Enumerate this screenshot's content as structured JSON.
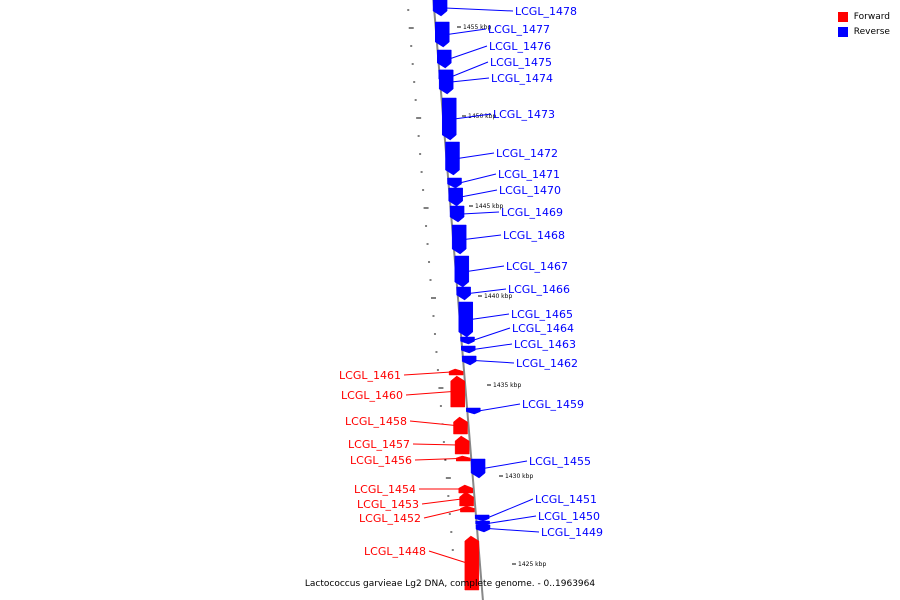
{
  "colors": {
    "forward": "#ff0000",
    "reverse": "#0000ff",
    "backbone": "#888888"
  },
  "legend": [
    {
      "label": "Forward",
      "color": "#ff0000"
    },
    {
      "label": "Reverse",
      "color": "#0000ff"
    }
  ],
  "footer": {
    "text": "Lactococcus garvieae Lg2 DNA, complete genome. - 0..1963964"
  },
  "ticks": [
    "1455 kbp",
    "1450 kbp",
    "1445 kbp",
    "1440 kbp",
    "1435 kbp",
    "1430 kbp",
    "1425 kbp"
  ],
  "genes": [
    {
      "name": "LCGL_1478",
      "strand": "reverse"
    },
    {
      "name": "LCGL_1477",
      "strand": "reverse"
    },
    {
      "name": "LCGL_1476",
      "strand": "reverse"
    },
    {
      "name": "LCGL_1475",
      "strand": "reverse"
    },
    {
      "name": "LCGL_1474",
      "strand": "reverse"
    },
    {
      "name": "LCGL_1473",
      "strand": "reverse"
    },
    {
      "name": "LCGL_1472",
      "strand": "reverse"
    },
    {
      "name": "LCGL_1471",
      "strand": "reverse"
    },
    {
      "name": "LCGL_1470",
      "strand": "reverse"
    },
    {
      "name": "LCGL_1469",
      "strand": "reverse"
    },
    {
      "name": "LCGL_1468",
      "strand": "reverse"
    },
    {
      "name": "LCGL_1467",
      "strand": "reverse"
    },
    {
      "name": "LCGL_1466",
      "strand": "reverse"
    },
    {
      "name": "LCGL_1465",
      "strand": "reverse"
    },
    {
      "name": "LCGL_1464",
      "strand": "reverse"
    },
    {
      "name": "LCGL_1463",
      "strand": "reverse"
    },
    {
      "name": "LCGL_1462",
      "strand": "reverse"
    },
    {
      "name": "LCGL_1461",
      "strand": "forward"
    },
    {
      "name": "LCGL_1460",
      "strand": "forward"
    },
    {
      "name": "LCGL_1459",
      "strand": "reverse"
    },
    {
      "name": "LCGL_1458",
      "strand": "forward"
    },
    {
      "name": "LCGL_1457",
      "strand": "forward"
    },
    {
      "name": "LCGL_1456",
      "strand": "forward"
    },
    {
      "name": "LCGL_1455",
      "strand": "reverse"
    },
    {
      "name": "LCGL_1454",
      "strand": "forward"
    },
    {
      "name": "LCGL_1453",
      "strand": "forward"
    },
    {
      "name": "LCGL_1452",
      "strand": "forward"
    },
    {
      "name": "LCGL_1451",
      "strand": "reverse"
    },
    {
      "name": "LCGL_1450",
      "strand": "reverse"
    },
    {
      "name": "LCGL_1449",
      "strand": "reverse"
    },
    {
      "name": "LCGL_1448",
      "strand": "forward"
    }
  ]
}
